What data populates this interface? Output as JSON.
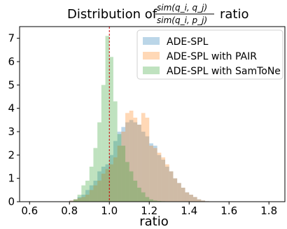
{
  "chart_data": {
    "type": "bar",
    "title_prefix": "Distribution of",
    "title_numerator": "sim(q_i, q_j)",
    "title_denominator": "sim(q_i, p_j)",
    "title_suffix": "ratio",
    "xlabel": "ratio",
    "ylabel": "",
    "xlim": [
      0.55,
      1.88
    ],
    "ylim": [
      0,
      7.5
    ],
    "xticks": [
      "0.6",
      "0.8",
      "1.0",
      "1.2",
      "1.4",
      "1.6",
      "1.8"
    ],
    "yticks": [
      "0",
      "1",
      "2",
      "3",
      "4",
      "5",
      "6",
      "7"
    ],
    "reference_line_x": 1.0,
    "reference_line_color": "#cc0000",
    "bin_width": 0.02,
    "legend_position": "upper right",
    "series": [
      {
        "name": "ADE-SPL",
        "color": "#1f77b4",
        "bins_x": [
          0.8,
          0.82,
          0.84,
          0.86,
          0.88,
          0.9,
          0.92,
          0.94,
          0.96,
          0.98,
          1.0,
          1.02,
          1.04,
          1.06,
          1.08,
          1.1,
          1.12,
          1.14,
          1.16,
          1.18,
          1.2,
          1.22,
          1.24,
          1.26,
          1.28,
          1.3,
          1.32,
          1.34,
          1.36,
          1.38,
          1.4,
          1.42,
          1.44,
          1.46,
          1.48
        ],
        "values": [
          0.05,
          0.1,
          0.2,
          0.3,
          0.5,
          0.7,
          0.9,
          1.3,
          1.5,
          1.6,
          2.0,
          2.6,
          3.0,
          3.2,
          3.4,
          3.5,
          3.4,
          3.3,
          3.0,
          2.8,
          2.5,
          2.4,
          2.0,
          1.8,
          1.5,
          1.3,
          1.0,
          0.8,
          0.6,
          0.4,
          0.3,
          0.2,
          0.1,
          0.05,
          0.02
        ]
      },
      {
        "name": "ADE-SPL with PAIR",
        "color": "#ff7f0e",
        "bins_x": [
          0.8,
          0.82,
          0.84,
          0.86,
          0.88,
          0.9,
          0.92,
          0.94,
          0.96,
          0.98,
          1.0,
          1.02,
          1.04,
          1.06,
          1.08,
          1.1,
          1.12,
          1.14,
          1.16,
          1.18,
          1.2,
          1.22,
          1.24,
          1.26,
          1.28,
          1.3,
          1.32,
          1.34,
          1.36,
          1.38,
          1.4,
          1.42,
          1.44,
          1.46,
          1.48
        ],
        "values": [
          0.05,
          0.1,
          0.15,
          0.2,
          0.3,
          0.5,
          0.7,
          0.9,
          1.2,
          1.4,
          1.6,
          1.9,
          2.4,
          3.0,
          3.8,
          3.9,
          3.6,
          3.3,
          3.8,
          3.6,
          2.4,
          2.3,
          2.1,
          1.9,
          1.6,
          1.3,
          1.0,
          0.8,
          0.6,
          0.4,
          0.3,
          0.2,
          0.1,
          0.05,
          0.02
        ]
      },
      {
        "name": "ADE-SPL with SamToNe",
        "color": "#2ca02c",
        "bins_x": [
          0.82,
          0.84,
          0.86,
          0.88,
          0.9,
          0.92,
          0.94,
          0.96,
          0.98,
          1.0,
          1.02,
          1.04,
          1.06,
          1.08,
          1.1,
          1.12,
          1.14,
          1.16,
          1.18,
          1.2,
          1.22,
          1.24,
          1.26,
          1.28
        ],
        "values": [
          0.1,
          0.3,
          0.7,
          0.9,
          1.5,
          2.3,
          3.4,
          5.0,
          7.1,
          6.2,
          4.3,
          2.9,
          2.4,
          1.7,
          1.3,
          0.9,
          0.6,
          0.4,
          0.2,
          0.1,
          0.05,
          0.03,
          0.02,
          0.01
        ]
      }
    ]
  }
}
